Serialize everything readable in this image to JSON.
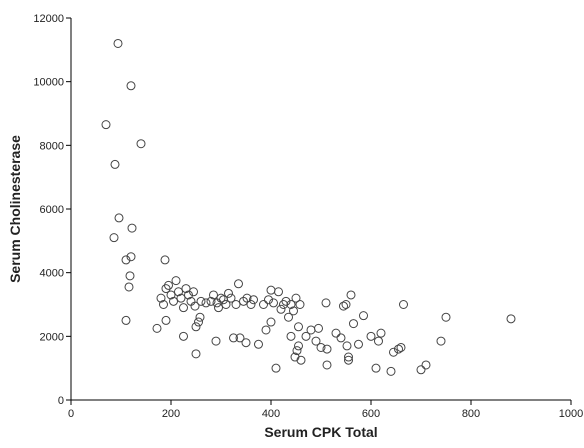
{
  "chart_data": {
    "type": "scatter",
    "x_label": "Serum CPK Total",
    "y_label": "Serum Cholinesterase",
    "xlim": [
      0,
      1000
    ],
    "ylim": [
      0,
      12000
    ],
    "xticks": [
      0,
      200,
      400,
      600,
      800,
      1000
    ],
    "yticks": [
      0,
      2000,
      4000,
      6000,
      8000,
      10000,
      12000
    ],
    "color": "#444444",
    "x": [
      70,
      94,
      120,
      140,
      88,
      96,
      122,
      86,
      110,
      120,
      118,
      116,
      110,
      188,
      172,
      180,
      185,
      190,
      195,
      190,
      200,
      205,
      210,
      215,
      220,
      225,
      225,
      230,
      235,
      240,
      245,
      248,
      250,
      250,
      255,
      258,
      260,
      270,
      280,
      285,
      290,
      292,
      295,
      300,
      305,
      310,
      315,
      320,
      325,
      330,
      335,
      338,
      345,
      350,
      352,
      360,
      365,
      375,
      385,
      390,
      395,
      400,
      400,
      405,
      410,
      415,
      420,
      425,
      430,
      435,
      440,
      440,
      445,
      448,
      450,
      452,
      455,
      455,
      458,
      460,
      470,
      480,
      490,
      495,
      500,
      510,
      512,
      512,
      530,
      540,
      545,
      550,
      552,
      555,
      560,
      555,
      565,
      575,
      585,
      600,
      610,
      615,
      620,
      640,
      645,
      655,
      660,
      665,
      700,
      710,
      740,
      750,
      880
    ],
    "values": [
      8650,
      11200,
      9870,
      8050,
      7400,
      5720,
      5400,
      5100,
      4400,
      4500,
      3900,
      3550,
      2500,
      4400,
      2250,
      3200,
      3000,
      3500,
      3600,
      2500,
      3300,
      3100,
      3750,
      3400,
      3200,
      2900,
      2000,
      3500,
      3300,
      3100,
      3400,
      2950,
      2300,
      1450,
      2450,
      2600,
      3100,
      3050,
      3100,
      3300,
      1850,
      3050,
      2900,
      3200,
      3150,
      3000,
      3350,
      3200,
      1950,
      3000,
      3650,
      1950,
      3100,
      1800,
      3200,
      3000,
      3150,
      1750,
      3000,
      2200,
      3150,
      2450,
      3450,
      3050,
      1000,
      3400,
      2850,
      3000,
      3100,
      2600,
      2000,
      3000,
      2800,
      1350,
      3200,
      1550,
      1700,
      2300,
      3000,
      1250,
      2000,
      2200,
      1850,
      2250,
      1650,
      3050,
      1100,
      1600,
      2100,
      1950,
      2950,
      3000,
      1700,
      1250,
      3300,
      1350,
      2400,
      1750,
      2650,
      2000,
      1000,
      1850,
      2100,
      900,
      1500,
      1600,
      1650,
      3000,
      950,
      1100,
      1850,
      2600,
      2550
    ]
  }
}
